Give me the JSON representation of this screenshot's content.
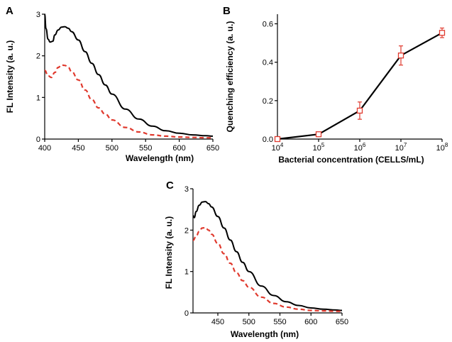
{
  "chart_data": [
    {
      "panel": "A",
      "type": "line",
      "xlabel": "Wavelength (nm)",
      "ylabel": "FL Intensity (a. u.)",
      "xlim": [
        400,
        650
      ],
      "ylim": [
        0,
        3
      ],
      "xticks": [
        "400",
        "450",
        "500",
        "550",
        "600",
        "650"
      ],
      "yticks": [
        "0",
        "1",
        "2",
        "3"
      ],
      "series": [
        {
          "style": "solid",
          "color": "#000000",
          "x": [
            400,
            402,
            405,
            408,
            412,
            415,
            420,
            425,
            430,
            435,
            440,
            450,
            460,
            470,
            480,
            490,
            500,
            520,
            540,
            560,
            580,
            600,
            620,
            640,
            650
          ],
          "y": [
            3.0,
            2.65,
            2.4,
            2.33,
            2.35,
            2.5,
            2.62,
            2.69,
            2.7,
            2.66,
            2.58,
            2.38,
            2.1,
            1.82,
            1.55,
            1.3,
            1.08,
            0.72,
            0.48,
            0.31,
            0.2,
            0.14,
            0.1,
            0.08,
            0.07
          ]
        },
        {
          "style": "dashed",
          "color": "#e03a2e",
          "x": [
            400,
            405,
            410,
            415,
            420,
            425,
            430,
            435,
            440,
            450,
            460,
            470,
            480,
            490,
            500,
            520,
            540,
            560,
            580,
            600,
            620,
            640,
            650
          ],
          "y": [
            1.65,
            1.52,
            1.48,
            1.6,
            1.72,
            1.78,
            1.77,
            1.72,
            1.62,
            1.42,
            1.18,
            0.95,
            0.75,
            0.6,
            0.46,
            0.28,
            0.17,
            0.1,
            0.07,
            0.05,
            0.04,
            0.03,
            0.03
          ]
        }
      ]
    },
    {
      "panel": "B",
      "type": "line",
      "xlabel": "Bacterial concentration (CELLS/mL)",
      "ylabel": "Quenching efficiency (a. u.)",
      "xscale": "log",
      "xlim": [
        10000,
        100000000
      ],
      "ylim": [
        0,
        0.65
      ],
      "xticks": [
        {
          "base": "10",
          "exp": "4"
        },
        {
          "base": "10",
          "exp": "5"
        },
        {
          "base": "10",
          "exp": "6"
        },
        {
          "base": "10",
          "exp": "7"
        },
        {
          "base": "10",
          "exp": "8"
        }
      ],
      "yticks": [
        "0.0",
        "0.2",
        "0.4",
        "0.6"
      ],
      "series": [
        {
          "marker": "open-square",
          "line_color": "#000000",
          "marker_color": "#e03a2e",
          "x": [
            10000,
            100000,
            1000000,
            10000000,
            100000000
          ],
          "y": [
            0.0,
            0.025,
            0.148,
            0.435,
            0.553
          ],
          "err": [
            0.0,
            0.008,
            0.045,
            0.05,
            0.025
          ]
        }
      ]
    },
    {
      "panel": "C",
      "type": "line",
      "xlabel": "Wavelength (nm)",
      "ylabel": "FL Intensity (a. u.)",
      "xlim": [
        410,
        650
      ],
      "ylim": [
        0,
        3
      ],
      "xticks": [
        "450",
        "500",
        "550",
        "600",
        "650"
      ],
      "yticks": [
        "0",
        "1",
        "2",
        "3"
      ],
      "series": [
        {
          "style": "solid",
          "color": "#000000",
          "x": [
            410,
            412,
            415,
            420,
            425,
            430,
            435,
            440,
            450,
            460,
            470,
            480,
            490,
            500,
            520,
            540,
            560,
            580,
            600,
            620,
            640,
            650
          ],
          "y": [
            2.35,
            2.3,
            2.45,
            2.6,
            2.68,
            2.69,
            2.64,
            2.56,
            2.33,
            2.05,
            1.76,
            1.48,
            1.22,
            1.0,
            0.65,
            0.42,
            0.27,
            0.18,
            0.12,
            0.09,
            0.07,
            0.06
          ]
        },
        {
          "style": "dashed",
          "color": "#e03a2e",
          "x": [
            410,
            415,
            420,
            425,
            430,
            435,
            440,
            450,
            460,
            470,
            480,
            490,
            500,
            520,
            540,
            560,
            580,
            600,
            620,
            640,
            650
          ],
          "y": [
            1.75,
            1.85,
            1.97,
            2.05,
            2.06,
            2.0,
            1.9,
            1.68,
            1.43,
            1.2,
            0.97,
            0.78,
            0.62,
            0.38,
            0.23,
            0.14,
            0.09,
            0.06,
            0.05,
            0.04,
            0.04
          ]
        }
      ]
    }
  ]
}
